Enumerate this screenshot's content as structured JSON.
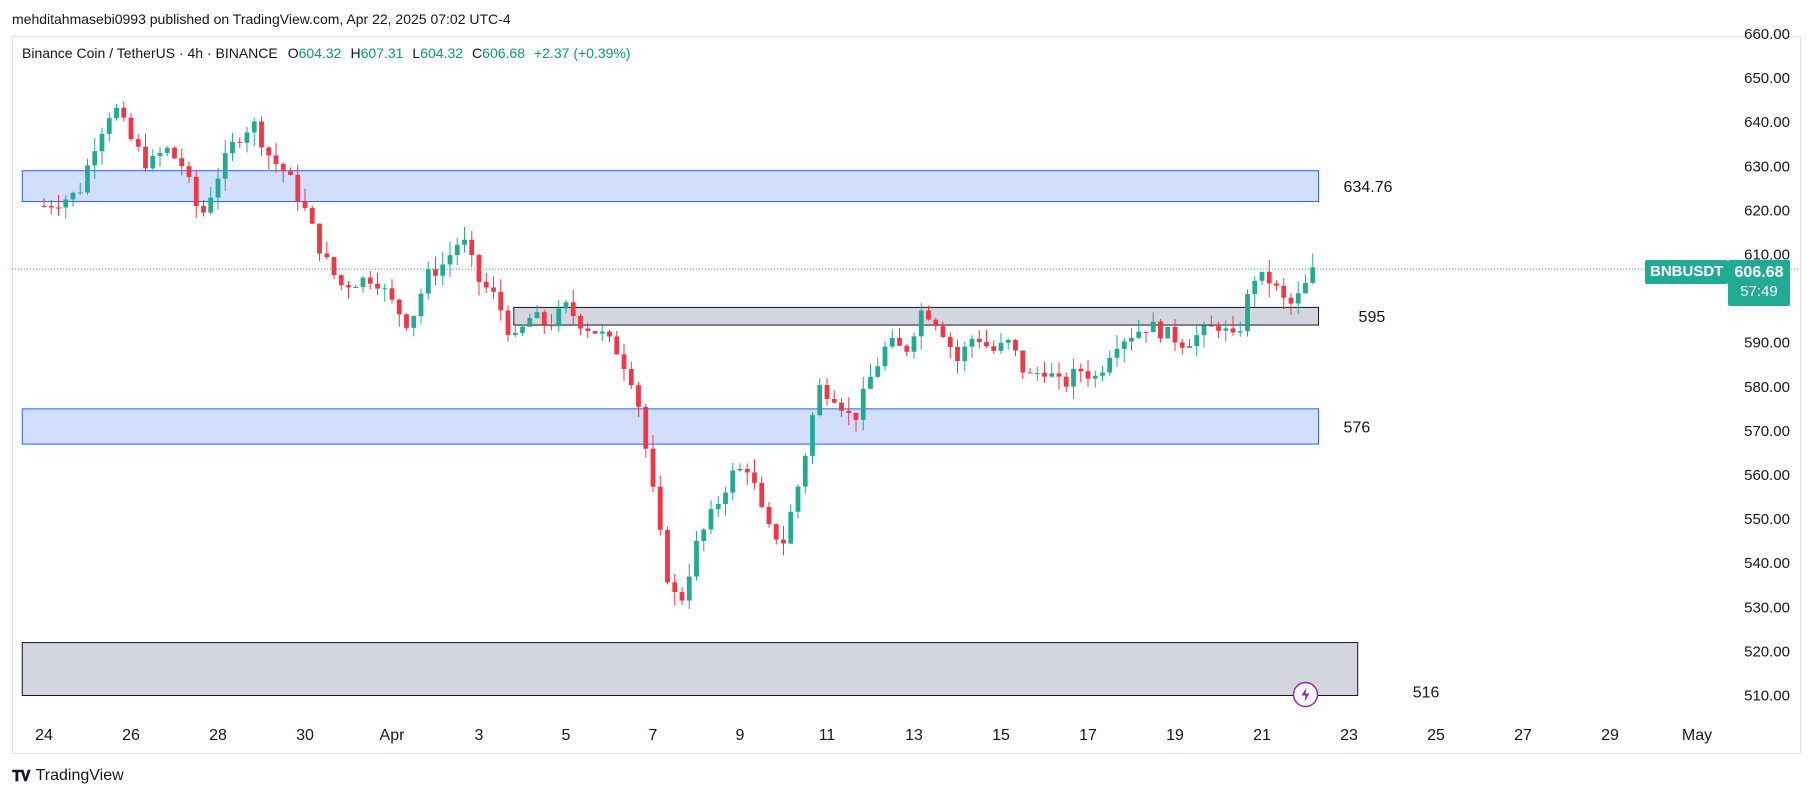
{
  "publish": {
    "text": "mehditahmasebi0993 published on TradingView.com, Apr 22, 2025 07:02 UTC-4"
  },
  "legend": {
    "symbol": "Binance Coin / TetherUS · 4h · BINANCE",
    "o_label": "O",
    "o_value": "604.32",
    "h_label": "H",
    "h_value": "607.31",
    "l_label": "L",
    "l_value": "604.32",
    "c_label": "C",
    "c_value": "606.68",
    "change": "+2.37 (+0.39%)"
  },
  "price_tag": {
    "ticker": "BNBUSDT",
    "price": "606.68",
    "countdown": "57:49"
  },
  "footer": {
    "brand": "TradingView"
  },
  "colors": {
    "up": "#22ab94",
    "down": "#f23645",
    "zone_blue": "#c9d8fb",
    "zone_blue_border": "#2962ff",
    "zone_gray": "#d1d4dc",
    "tag": "#22ab94"
  },
  "chart_data": {
    "type": "candlestick",
    "title": "Binance Coin / TetherUS · 4h · BINANCE",
    "y_ticks": [
      660,
      650,
      640,
      630,
      620,
      610,
      600,
      590,
      580,
      570,
      560,
      550,
      540,
      530,
      520,
      510
    ],
    "y_tick_labels": [
      "660.00",
      "650.00",
      "640.00",
      "630.00",
      "620.00",
      "610.00",
      "600.00",
      "590.00",
      "580.00",
      "570.00",
      "560.00",
      "550.00",
      "540.00",
      "530.00",
      "520.00",
      "510.00"
    ],
    "ylim": [
      507,
      662
    ],
    "x_ticks": [
      "24",
      "26",
      "28",
      "30",
      "Apr",
      "3",
      "5",
      "7",
      "9",
      "11",
      "13",
      "15",
      "17",
      "19",
      "21",
      "23",
      "25",
      "27",
      "29",
      "May"
    ],
    "x_tick_days": [
      0,
      2,
      4,
      6,
      8,
      10,
      12,
      14,
      16,
      18,
      20,
      22,
      24,
      26,
      28,
      30,
      32,
      34,
      36,
      38
    ],
    "last_price": 606.68,
    "zones": [
      {
        "name": "resistance-634",
        "label": "634.76",
        "top": 629,
        "bottom": 622,
        "start_day": -0.5,
        "end_day": 29.3,
        "style": "blue"
      },
      {
        "name": "level-595",
        "label": "595",
        "top": 598,
        "bottom": 594,
        "start_day": 10.8,
        "end_day": 29.3,
        "style": "gray"
      },
      {
        "name": "support-576",
        "label": "576",
        "top": 575,
        "bottom": 567,
        "start_day": -0.5,
        "end_day": 29.3,
        "style": "blue"
      },
      {
        "name": "demand-516",
        "label": "516",
        "top": 522,
        "bottom": 510,
        "start_day": -0.5,
        "end_day": 30.2,
        "style": "gray"
      }
    ],
    "path_points": [
      [
        0,
        621
      ],
      [
        0.3,
        622
      ],
      [
        0.8,
        624
      ],
      [
        1.2,
        636
      ],
      [
        1.6,
        644
      ],
      [
        2.0,
        636
      ],
      [
        2.4,
        630
      ],
      [
        2.8,
        634
      ],
      [
        3.2,
        630
      ],
      [
        3.6,
        618
      ],
      [
        4.0,
        628
      ],
      [
        4.4,
        636
      ],
      [
        4.8,
        640
      ],
      [
        5.2,
        632
      ],
      [
        5.6,
        628
      ],
      [
        6.0,
        620
      ],
      [
        6.4,
        610
      ],
      [
        6.8,
        603
      ],
      [
        7.2,
        604
      ],
      [
        7.6,
        605
      ],
      [
        8.0,
        599
      ],
      [
        8.4,
        594
      ],
      [
        8.8,
        605
      ],
      [
        9.2,
        608
      ],
      [
        9.6,
        614
      ],
      [
        10.0,
        604
      ],
      [
        10.4,
        600
      ],
      [
        10.8,
        590
      ],
      [
        11.2,
        596
      ],
      [
        11.6,
        594
      ],
      [
        12.0,
        598
      ],
      [
        12.4,
        594
      ],
      [
        12.8,
        592
      ],
      [
        13.2,
        588
      ],
      [
        13.6,
        580
      ],
      [
        14.0,
        556
      ],
      [
        14.3,
        538
      ],
      [
        14.6,
        530
      ],
      [
        15.0,
        544
      ],
      [
        15.4,
        552
      ],
      [
        15.8,
        560
      ],
      [
        16.2,
        562
      ],
      [
        16.6,
        548
      ],
      [
        17.0,
        545
      ],
      [
        17.4,
        560
      ],
      [
        17.8,
        580
      ],
      [
        18.2,
        578
      ],
      [
        18.6,
        572
      ],
      [
        19.0,
        582
      ],
      [
        19.4,
        590
      ],
      [
        19.8,
        588
      ],
      [
        20.2,
        598
      ],
      [
        20.6,
        594
      ],
      [
        21.0,
        586
      ],
      [
        21.4,
        592
      ],
      [
        21.8,
        588
      ],
      [
        22.2,
        590
      ],
      [
        22.6,
        582
      ],
      [
        23.0,
        584
      ],
      [
        23.4,
        580
      ],
      [
        23.8,
        584
      ],
      [
        24.2,
        582
      ],
      [
        24.6,
        590
      ],
      [
        25.0,
        592
      ],
      [
        25.4,
        594
      ],
      [
        25.8,
        592
      ],
      [
        26.2,
        590
      ],
      [
        26.6,
        592
      ],
      [
        27.0,
        594
      ],
      [
        27.4,
        590
      ],
      [
        27.8,
        605
      ],
      [
        28.2,
        604
      ],
      [
        28.6,
        598
      ],
      [
        28.9,
        601
      ],
      [
        29.2,
        606.68
      ]
    ]
  }
}
